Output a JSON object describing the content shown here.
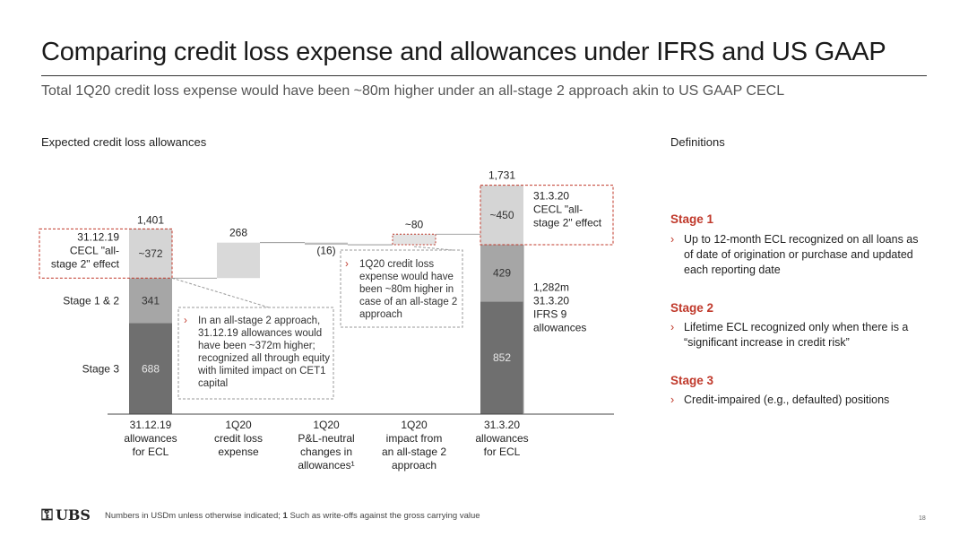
{
  "title": "Comparing credit loss expense and allowances under IFRS and US GAAP",
  "subtitle": "Total 1Q20 credit loss expense would have been ~80m higher under an all-stage 2 approach akin to US GAAP CECL",
  "chart_heading": "Expected credit loss allowances",
  "definitions_heading": "Definitions",
  "definitions": [
    {
      "title": "Stage 1",
      "text": "Up to 12-month ECL recognized on all loans as of date of origination or purchase and updated each reporting date"
    },
    {
      "title": "Stage 2",
      "text": "Lifetime ECL recognized only when there is a “significant increase in credit risk”"
    },
    {
      "title": "Stage 3",
      "text": "Credit-impaired (e.g., defaulted) positions"
    }
  ],
  "chart_data": {
    "type": "bar",
    "subtype": "waterfall",
    "categories": [
      "31.12.19 allowances for ECL",
      "1Q20 credit loss expense",
      "1Q20 P&L-neutral changes in allowances¹",
      "1Q20 impact from an all-stage 2 approach",
      "31.3.20 allowances for ECL"
    ],
    "category_lines": [
      [
        "31.12.19",
        "allowances",
        "for ECL"
      ],
      [
        "1Q20",
        "credit loss",
        "expense"
      ],
      [
        "1Q20",
        "P&L-neutral",
        "changes in",
        "allowances¹"
      ],
      [
        "1Q20",
        "impact from",
        "an all-stage 2",
        "approach"
      ],
      [
        "31.3.20",
        "allowances",
        "for ECL"
      ]
    ],
    "series": [
      {
        "name": "Stage 3",
        "values": [
          688,
          null,
          null,
          null,
          852
        ]
      },
      {
        "name": "Stage 1 & 2",
        "values": [
          341,
          null,
          null,
          null,
          429
        ]
      },
      {
        "name": "CECL \"all-stage 2\" effect",
        "values": [
          372,
          null,
          null,
          80,
          450
        ]
      }
    ],
    "waterfall": [
      {
        "category": 1,
        "start": 1029,
        "end": 1297,
        "label": "268"
      },
      {
        "category": 2,
        "start": 1297,
        "end": 1281,
        "label": "(16)"
      },
      {
        "category": 3,
        "start": 1281,
        "end": 1361,
        "label": "~80"
      }
    ],
    "segment_labels": {
      "bar0": [
        "688",
        "341",
        "~372"
      ],
      "bar4": [
        "852",
        "429",
        "~450"
      ]
    },
    "totals": [
      {
        "category": 0,
        "label": "1,401"
      },
      {
        "category": 4,
        "label": "1,731"
      }
    ],
    "row_labels": [
      "Stage 3",
      "Stage 1 & 2"
    ],
    "left_callout": [
      "31.12.19",
      "CECL \"all-",
      "stage 2\" effect"
    ],
    "right_labels": {
      "cecl": [
        "31.3.20",
        "CECL \"all-",
        "stage 2\" effect"
      ],
      "ifrs": [
        "1,282m",
        "31.3.20",
        "IFRS 9",
        "allowances"
      ]
    },
    "annotations": [
      "In an all-stage 2 approach, 31.12.19 allowances would have been ~372m higher; recognized all through equity with limited impact on CET1 capital",
      "1Q20 credit loss expense would have been ~80m higher in case of an all-stage 2 approach"
    ],
    "ylim": [
      0,
      1800
    ],
    "colors": {
      "stage3": "#6f6f6f",
      "stage12": "#a6a6a6",
      "cecl": "#d5d5d5",
      "cecl_dashed": "#c0392b",
      "increase": "#d9d9d9"
    }
  },
  "footer": {
    "logo": "UBS",
    "note_plain": "Numbers in USDm unless otherwise indicated; ",
    "note_num": "1",
    "note_rest": " Such as write-offs against the gross carrying value",
    "page": "18"
  }
}
